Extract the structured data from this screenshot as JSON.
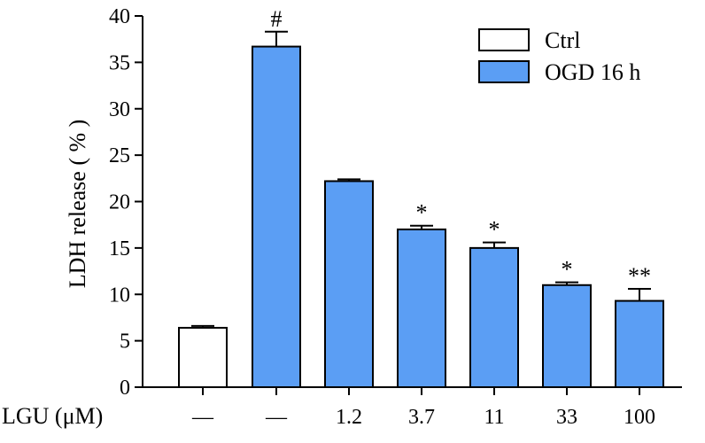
{
  "chart_data": {
    "type": "bar",
    "ylabel": "LDH release ( % )",
    "xlabel": "LGU (μM)",
    "ylim": [
      0,
      40
    ],
    "yticks": [
      0,
      5,
      10,
      15,
      20,
      25,
      30,
      35,
      40
    ],
    "ytick_labels": [
      "0",
      "5",
      "10",
      "15",
      "20",
      "25",
      "30",
      "35",
      "40"
    ],
    "categories": [
      "—",
      "—",
      "1.2",
      "3.7",
      "11",
      "33",
      "100"
    ],
    "series": [
      {
        "name": "Ctrl",
        "color": "#ffffff"
      },
      {
        "name": "OGD 16 h",
        "color": "#5b9ef4"
      }
    ],
    "bars": [
      {
        "category": "—",
        "series": "Ctrl",
        "value": 6.4,
        "error": 0.2,
        "annotation": ""
      },
      {
        "category": "—",
        "series": "OGD 16 h",
        "value": 36.7,
        "error": 1.6,
        "annotation": "#"
      },
      {
        "category": "1.2",
        "series": "OGD 16 h",
        "value": 22.2,
        "error": 0.2,
        "annotation": ""
      },
      {
        "category": "3.7",
        "series": "OGD 16 h",
        "value": 17.0,
        "error": 0.4,
        "annotation": "*"
      },
      {
        "category": "11",
        "series": "OGD 16 h",
        "value": 15.0,
        "error": 0.6,
        "annotation": "*"
      },
      {
        "category": "33",
        "series": "OGD 16 h",
        "value": 11.0,
        "error": 0.3,
        "annotation": "*"
      },
      {
        "category": "100",
        "series": "OGD 16 h",
        "value": 9.3,
        "error": 1.3,
        "annotation": "**"
      }
    ],
    "legend": {
      "position": "top-right",
      "entries": [
        "Ctrl",
        "OGD 16 h"
      ]
    }
  }
}
